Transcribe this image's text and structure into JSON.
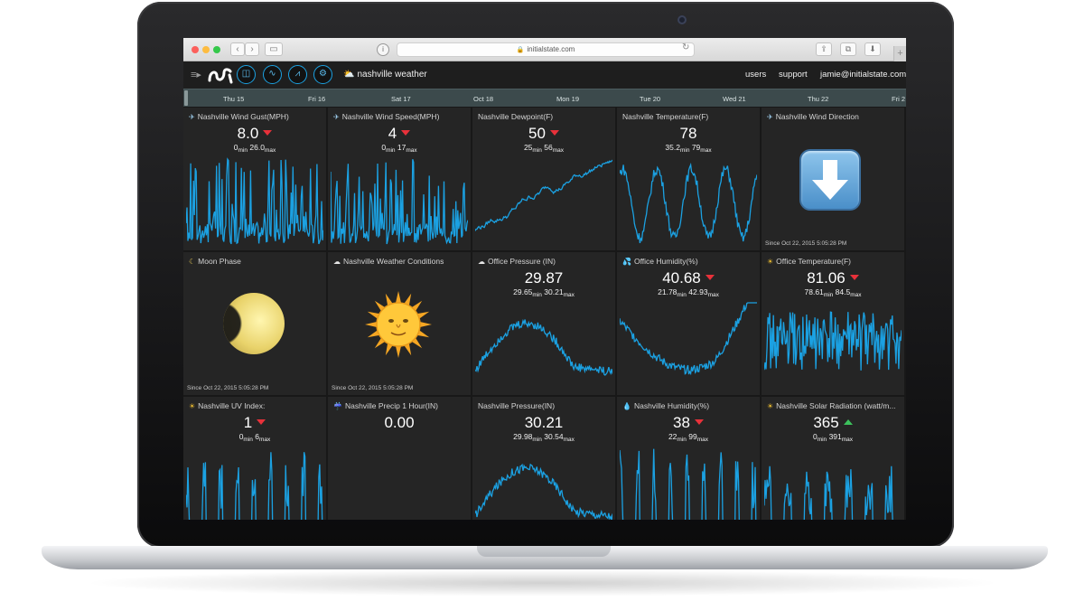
{
  "browser": {
    "url": "initialstate.com"
  },
  "header": {
    "title": "nashville weather",
    "links": [
      "users",
      "support",
      "jamie@initialstate.com"
    ]
  },
  "timeline": {
    "days": [
      "Thu 15",
      "Fri 16",
      "Sat 17",
      "Oct 18",
      "Mon 19",
      "Tue 20",
      "Wed 21",
      "Thu 22",
      "Fri 2"
    ]
  },
  "tiles": [
    {
      "title": "Nashville Wind Gust(MPH)",
      "value": "8.0",
      "trend": "down",
      "min": "0",
      "max": "26.0",
      "icon": "wind-icon",
      "type": "line"
    },
    {
      "title": "Nashville Wind Speed(MPH)",
      "value": "4",
      "trend": "down",
      "min": "0",
      "max": "17",
      "icon": "wind-icon",
      "type": "line"
    },
    {
      "title": "Nashville Dewpoint(F)",
      "value": "50",
      "trend": "down",
      "min": "25",
      "max": "56",
      "icon": "",
      "type": "line"
    },
    {
      "title": "Nashville Temperature(F)",
      "value": "78",
      "trend": "",
      "min": "35.2",
      "max": "79",
      "icon": "",
      "type": "line"
    },
    {
      "title": "Nashville Wind Direction",
      "value": "",
      "trend": "",
      "since": "Since Oct 22, 2015 5:05:28 PM",
      "icon": "wind-icon",
      "type": "arrow"
    },
    {
      "title": "Moon Phase",
      "value": "",
      "trend": "",
      "since": "Since Oct 22, 2015 5:05:28 PM",
      "icon": "moon-icon",
      "type": "moon"
    },
    {
      "title": "Nashville Weather Conditions",
      "value": "",
      "trend": "",
      "since": "Since Oct 22, 2015 5:05:28 PM",
      "icon": "cloud-icon",
      "type": "sun"
    },
    {
      "title": "Office Pressure (IN)",
      "value": "29.87",
      "trend": "",
      "min": "29.65",
      "max": "30.21",
      "icon": "cloud-icon",
      "type": "line"
    },
    {
      "title": "Office Humidity(%)",
      "value": "40.68",
      "trend": "down",
      "min": "21.78",
      "max": "42.93",
      "icon": "droplets-icon",
      "type": "line"
    },
    {
      "title": "Office Temperature(F)",
      "value": "81.06",
      "trend": "down",
      "min": "78.61",
      "max": "84.5",
      "icon": "sun-icon",
      "type": "line"
    },
    {
      "title": "Nashville UV Index:",
      "value": "1",
      "trend": "down",
      "min": "0",
      "max": "6",
      "icon": "sun-icon",
      "type": "line"
    },
    {
      "title": "Nashville Precip 1 Hour(IN)",
      "value": "0.00",
      "trend": "",
      "icon": "rain-icon",
      "type": "blank"
    },
    {
      "title": "Nashville Pressure(IN)",
      "value": "30.21",
      "trend": "",
      "min": "29.98",
      "max": "30.54",
      "icon": "",
      "type": "line"
    },
    {
      "title": "Nashville Humidity(%)",
      "value": "38",
      "trend": "down",
      "min": "22",
      "max": "99",
      "icon": "droplet-icon",
      "type": "line"
    },
    {
      "title": "Nashville Solar Radiation (watt/m...",
      "value": "365",
      "trend": "up",
      "min": "0",
      "max": "391",
      "icon": "sun-icon",
      "type": "line"
    }
  ],
  "labels": {
    "min": "min",
    "max": "max"
  },
  "colors": {
    "accent": "#1ba1e2",
    "tile_bg": "#252525",
    "down": "#e8313a",
    "up": "#3cc15c"
  }
}
